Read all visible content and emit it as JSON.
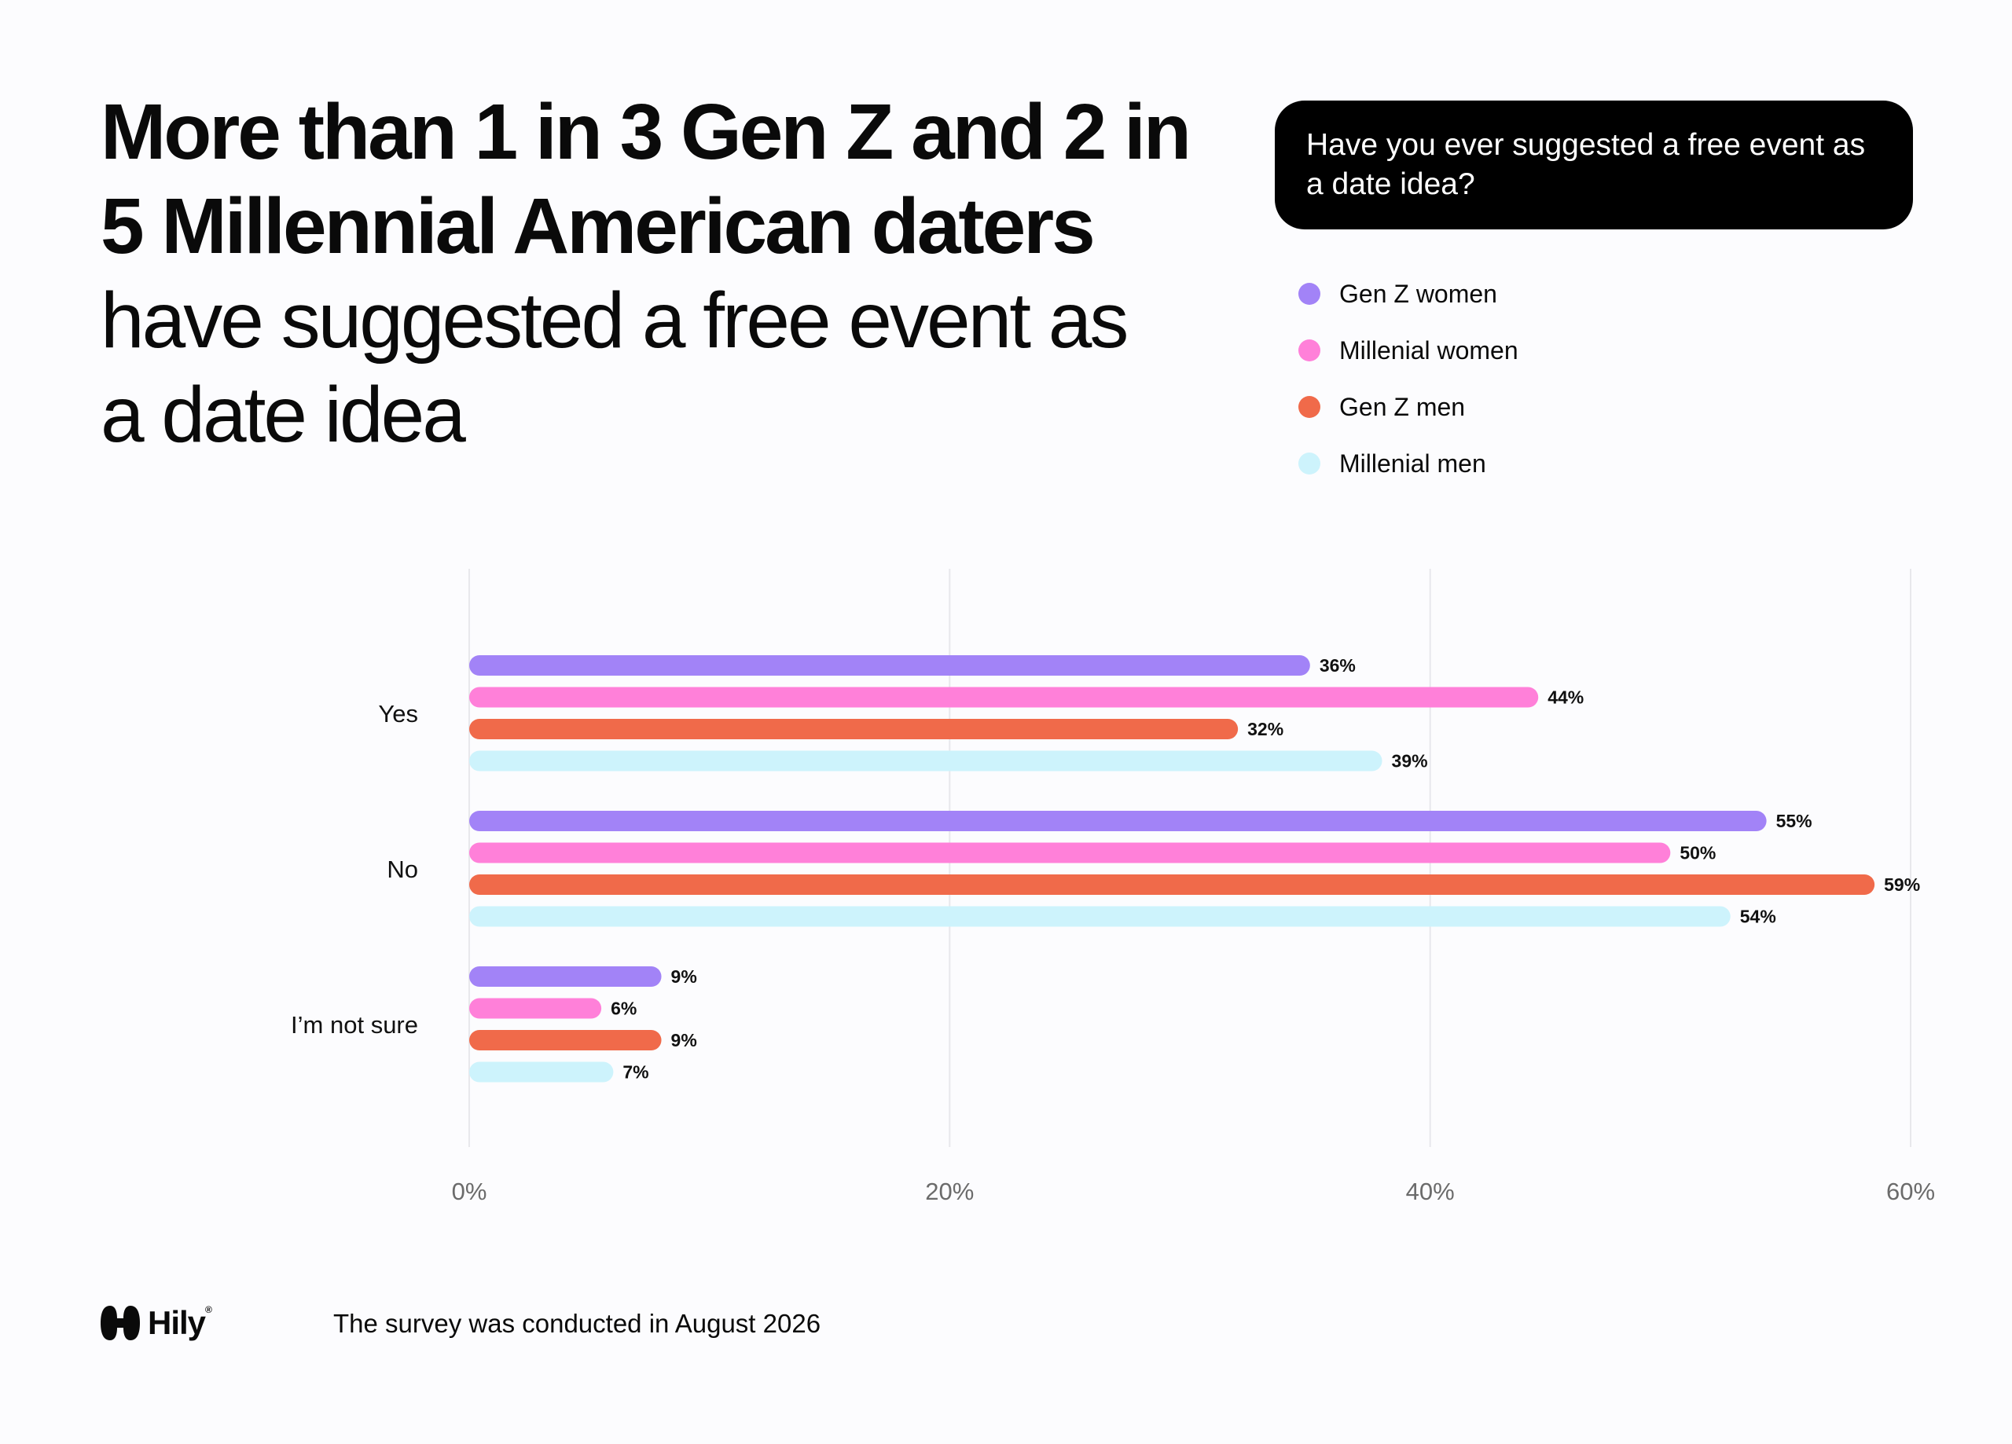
{
  "headline": {
    "bold_line1": "More than 1 in 3 Gen Z and 2 in",
    "bold_line2": "5 Millennial American daters",
    "regular_line1": "have suggested a free event as",
    "regular_line2": "a date idea"
  },
  "question": "Have you ever suggested a free event as a date idea?",
  "legend": [
    {
      "label": "Gen Z women",
      "color": "#a283f7"
    },
    {
      "label": "Millenial women",
      "color": "#ff80d9"
    },
    {
      "label": "Gen Z men",
      "color": "#f06a4a"
    },
    {
      "label": "Millenial men",
      "color": "#cdf3fc"
    }
  ],
  "chart_data": {
    "type": "bar",
    "orientation": "horizontal",
    "categories": [
      "Yes",
      "No",
      "I’m not sure"
    ],
    "series": [
      {
        "name": "Gen Z women",
        "color": "#a283f7",
        "values": [
          36,
          55,
          9
        ]
      },
      {
        "name": "Millenial women",
        "color": "#ff80d9",
        "values": [
          44,
          50,
          6
        ]
      },
      {
        "name": "Gen Z men",
        "color": "#f06a4a",
        "values": [
          32,
          59,
          9
        ]
      },
      {
        "name": "Millenial men",
        "color": "#cdf3fc",
        "values": [
          39,
          54,
          7
        ]
      }
    ],
    "bar_lengths": [
      [
        35,
        54,
        8
      ],
      [
        44.5,
        50,
        5.5
      ],
      [
        32,
        58.5,
        8
      ],
      [
        38,
        52.5,
        6
      ]
    ],
    "x_ticks": [
      "0%",
      "20%",
      "40%",
      "60%"
    ],
    "xlim": [
      0,
      60
    ],
    "grid": "vertical",
    "value_suffix": "%"
  },
  "footer": {
    "brand": "Hily",
    "note": "The survey was conducted in August 2026"
  }
}
